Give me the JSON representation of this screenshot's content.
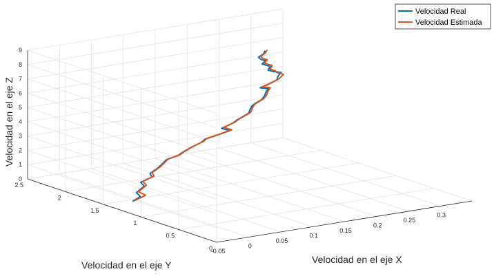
{
  "chart_data": {
    "type": "line",
    "title": "",
    "xlabel": "Velocidad en el eje X",
    "ylabel": "Velocidad en el eje Y",
    "zlabel": "Velocidad en el eje Z",
    "xlim": [
      -0.05,
      0.35
    ],
    "ylim": [
      0,
      2.5
    ],
    "zlim": [
      0,
      9
    ],
    "x_ticks": [
      "-0.05",
      "0",
      "0.05",
      "0.1",
      "0.15",
      "0.2",
      "0.25",
      "0.3"
    ],
    "y_ticks": [
      "0",
      "0.5",
      "1",
      "1.5",
      "2",
      "2.5"
    ],
    "z_ticks": [
      "0",
      "1",
      "2",
      "3",
      "4",
      "5",
      "6",
      "7",
      "8",
      "9"
    ],
    "grid": true,
    "legend_position": "top-right",
    "colors": {
      "real": "#0072BD",
      "estimada": "#D95319"
    },
    "series": [
      {
        "name": "Velocidad Real",
        "color": "#0072BD",
        "x": [
          -0.01,
          0.0,
          -0.005,
          0.01,
          0.005,
          0.02,
          0.015,
          0.03,
          0.04,
          0.045,
          0.06,
          0.065,
          0.08,
          0.1,
          0.105,
          0.12,
          0.14,
          0.13,
          0.15,
          0.155,
          0.16,
          0.17,
          0.175,
          0.18,
          0.185,
          0.19,
          0.195,
          0.2,
          0.205,
          0.19,
          0.2,
          0.215,
          0.22,
          0.225,
          0.21,
          0.2,
          0.205,
          0.195,
          0.2,
          0.19,
          0.185,
          0.195,
          0.2
        ],
        "z": [
          0.0,
          0.3,
          0.6,
          0.9,
          1.2,
          1.5,
          1.8,
          2.1,
          2.3,
          2.5,
          2.7,
          2.9,
          3.1,
          3.3,
          3.5,
          3.7,
          3.9,
          4.1,
          4.3,
          4.5,
          4.7,
          4.9,
          5.1,
          5.3,
          5.5,
          5.7,
          5.9,
          6.1,
          6.3,
          6.5,
          6.7,
          6.9,
          7.1,
          7.3,
          7.5,
          7.7,
          7.9,
          8.1,
          8.3,
          8.5,
          8.7,
          8.85,
          9.0
        ]
      },
      {
        "name": "Velocidad Estimada",
        "color": "#D95319",
        "x": [
          -0.005,
          0.01,
          0.0,
          0.015,
          0.01,
          0.025,
          0.02,
          0.035,
          0.045,
          0.05,
          0.065,
          0.07,
          0.085,
          0.105,
          0.11,
          0.125,
          0.145,
          0.135,
          0.155,
          0.16,
          0.165,
          0.175,
          0.18,
          0.185,
          0.19,
          0.195,
          0.2,
          0.205,
          0.21,
          0.195,
          0.205,
          0.22,
          0.23,
          0.22,
          0.215,
          0.205,
          0.21,
          0.2,
          0.205,
          0.195,
          0.19,
          0.2,
          0.205
        ],
        "z": [
          0.0,
          0.3,
          0.6,
          0.9,
          1.2,
          1.5,
          1.8,
          2.1,
          2.3,
          2.5,
          2.7,
          2.9,
          3.1,
          3.3,
          3.5,
          3.7,
          3.9,
          4.1,
          4.3,
          4.5,
          4.7,
          4.9,
          5.1,
          5.3,
          5.5,
          5.7,
          5.9,
          6.1,
          6.3,
          6.5,
          6.7,
          6.9,
          7.1,
          7.3,
          7.5,
          7.7,
          7.9,
          8.1,
          8.3,
          8.5,
          8.7,
          8.85,
          9.0
        ]
      }
    ]
  }
}
